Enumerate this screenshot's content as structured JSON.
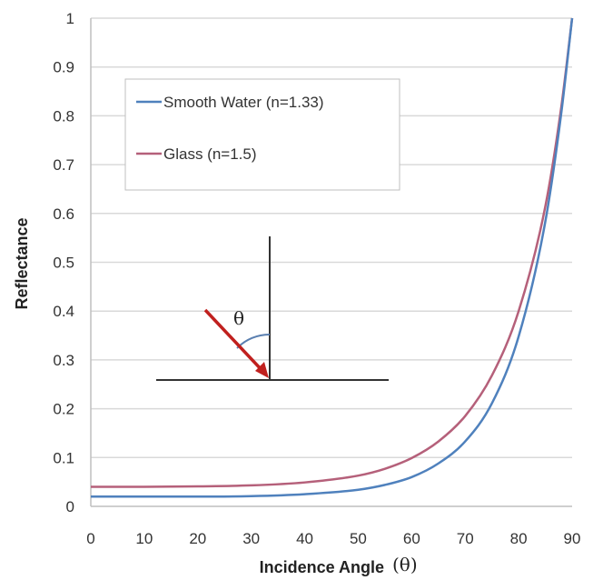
{
  "chart_data": {
    "type": "line",
    "xlabel": "Incidence Angle",
    "xlabel_symbol": "(θ)",
    "ylabel": "Reflectance",
    "xlim": [
      0,
      90
    ],
    "ylim": [
      0,
      1
    ],
    "x_ticks": [
      "0",
      "10",
      "20",
      "30",
      "40",
      "50",
      "60",
      "70",
      "80",
      "90"
    ],
    "y_ticks": [
      "0",
      "0.1",
      "0.2",
      "0.3",
      "0.4",
      "0.5",
      "0.6",
      "0.7",
      "0.8",
      "0.9",
      "1"
    ],
    "grid": "horizontal",
    "legend_position": "top-left",
    "x": [
      0,
      10,
      20,
      30,
      40,
      50,
      55,
      60,
      65,
      70,
      75,
      80,
      85,
      88,
      90
    ],
    "series": [
      {
        "name": "Smooth Water (n=1.33)",
        "color": "#4f81bd",
        "values": [
          0.02,
          0.02,
          0.02,
          0.021,
          0.025,
          0.034,
          0.044,
          0.06,
          0.088,
          0.133,
          0.211,
          0.348,
          0.584,
          0.808,
          1.0
        ]
      },
      {
        "name": "Glass (n=1.5)",
        "color": "#b5607a",
        "values": [
          0.04,
          0.04,
          0.041,
          0.043,
          0.049,
          0.063,
          0.077,
          0.099,
          0.133,
          0.185,
          0.268,
          0.4,
          0.615,
          0.82,
          1.0
        ]
      }
    ],
    "inset": {
      "angle_label": "θ",
      "arrow_color": "#c0201e"
    }
  }
}
